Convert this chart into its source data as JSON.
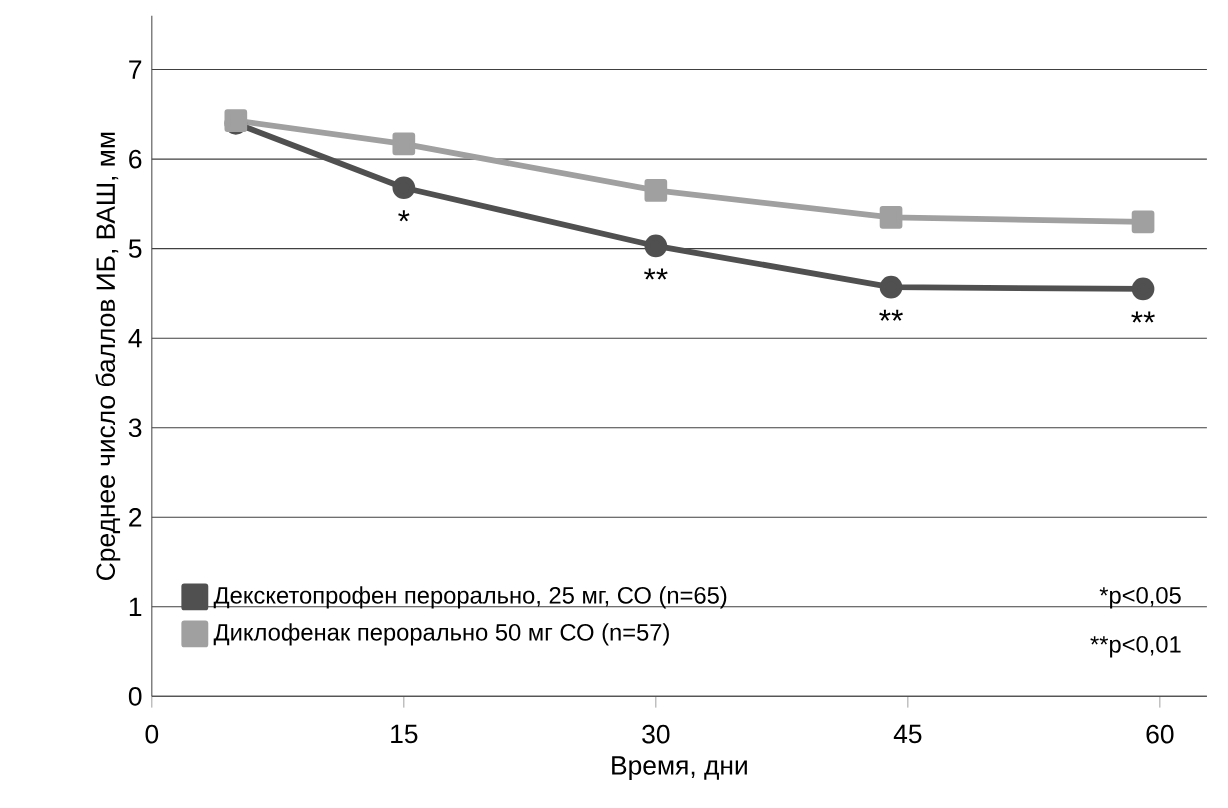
{
  "chart_data": {
    "type": "line",
    "xlabel": "Время, дни",
    "ylabel": "Среднее число баллов ИБ, ВАШ, мм",
    "x": [
      5,
      15,
      30,
      44,
      59
    ],
    "series": [
      {
        "name": "Декскетопрофен перорально, 25 мг, СО (n=65)",
        "color": "#505050",
        "marker": "circle",
        "values": [
          6.4,
          5.68,
          5.03,
          4.57,
          4.55
        ]
      },
      {
        "name": "Диклофенак перорально 50 мг СО (n=57)",
        "color": "#a0a0a0",
        "marker": "square",
        "values": [
          6.43,
          6.17,
          5.65,
          5.35,
          5.3
        ]
      }
    ],
    "xlim": [
      0,
      62.8
    ],
    "ylim": [
      0,
      7.6
    ],
    "xticks": [
      0,
      15,
      30,
      45,
      60
    ],
    "yticks": [
      0,
      1,
      2,
      3,
      4,
      5,
      6,
      7
    ],
    "grid": "y",
    "legend": "bottom left",
    "line_style": "solid",
    "annotations": [
      {
        "text": "*",
        "x": 15,
        "y": 5.68
      },
      {
        "text": "**",
        "x": 30,
        "y": 5.03
      },
      {
        "text": "**",
        "x": 44,
        "y": 4.57
      },
      {
        "text": "**",
        "x": 59,
        "y": 4.55
      },
      "*p<0,05",
      "**p<0,01"
    ]
  }
}
